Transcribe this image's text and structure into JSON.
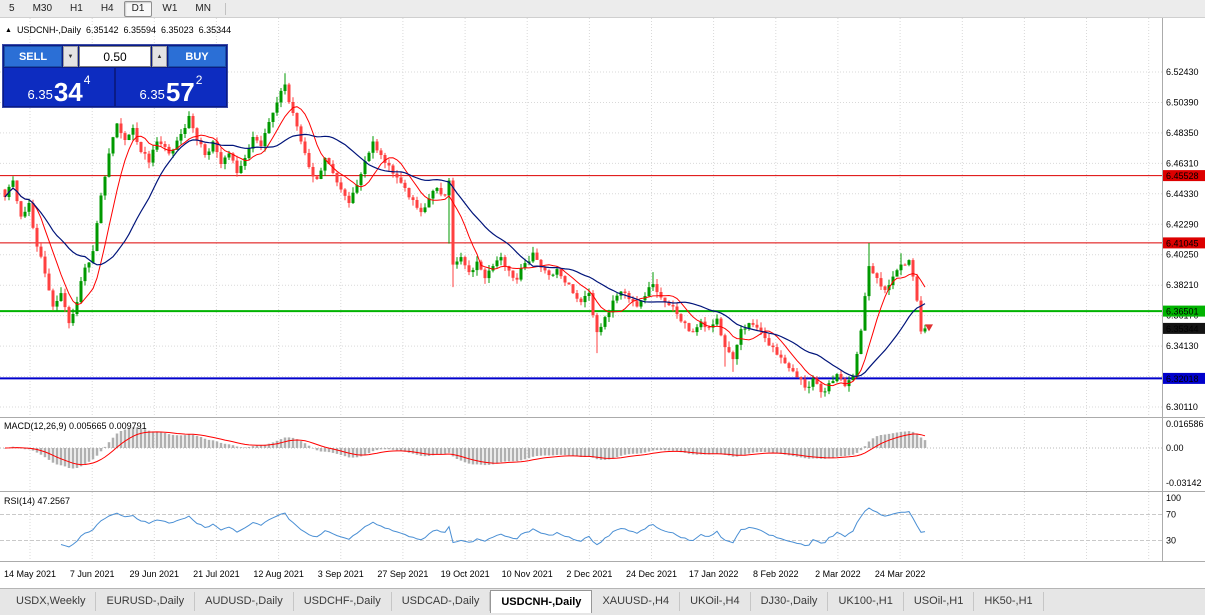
{
  "toolbar": {
    "timeframes": [
      {
        "label": "5",
        "active": false
      },
      {
        "label": "M30",
        "active": false
      },
      {
        "label": "H1",
        "active": false
      },
      {
        "label": "H4",
        "active": false
      },
      {
        "label": "D1",
        "active": true
      },
      {
        "label": "W1",
        "active": false
      },
      {
        "label": "MN",
        "active": false
      }
    ]
  },
  "chart_header": {
    "marker": "▲",
    "symbol": "USDCNH-,Daily",
    "open": "6.35142",
    "high": "6.35594",
    "low": "6.35023",
    "close": "6.35344"
  },
  "trade_panel": {
    "sell_label": "SELL",
    "buy_label": "BUY",
    "lot_value": "0.50",
    "lot_decrease_icon": "▼",
    "lot_increase_icon": "▲",
    "sell_price": {
      "prefix": "6.35",
      "big": "34",
      "sup": "4"
    },
    "buy_price": {
      "prefix": "6.35",
      "big": "57",
      "sup": "2"
    }
  },
  "tabs": [
    {
      "label": "USDX,Weekly",
      "active": false
    },
    {
      "label": "EURUSD-,Daily",
      "active": false
    },
    {
      "label": "AUDUSD-,Daily",
      "active": false
    },
    {
      "label": "USDCHF-,Daily",
      "active": false
    },
    {
      "label": "USDCAD-,Daily",
      "active": false
    },
    {
      "label": "USDCNH-,Daily",
      "active": true
    },
    {
      "label": "XAUUSD-,H4",
      "active": false
    },
    {
      "label": "UKOil-,H4",
      "active": false
    },
    {
      "label": "DJ30-,Daily",
      "active": false
    },
    {
      "label": "UK100-,H1",
      "active": false
    },
    {
      "label": "USOil-,H1",
      "active": false
    },
    {
      "label": "HK50-,H1",
      "active": false
    }
  ],
  "chart_data": {
    "type": "candlestick",
    "symbol": "USDCNH-",
    "timeframe": "Daily",
    "title": "USDCNH-,Daily",
    "last_ohlc": {
      "open": 6.35142,
      "high": 6.35594,
      "low": 6.35023,
      "close": 6.35344
    },
    "up_color": "#009900",
    "down_color": "#ff4040",
    "grid_color": "#d9d9d9",
    "candle_count": 231,
    "close_path": [
      [
        0,
        6.441
      ],
      [
        2,
        6.452
      ],
      [
        4,
        6.428
      ],
      [
        6,
        6.437
      ],
      [
        8,
        6.408
      ],
      [
        10,
        6.39
      ],
      [
        12,
        6.368
      ],
      [
        14,
        6.377
      ],
      [
        16,
        6.357
      ],
      [
        18,
        6.371
      ],
      [
        20,
        6.394
      ],
      [
        22,
        6.405
      ],
      [
        24,
        6.442
      ],
      [
        26,
        6.47
      ],
      [
        28,
        6.49
      ],
      [
        30,
        6.479
      ],
      [
        32,
        6.487
      ],
      [
        34,
        6.471
      ],
      [
        36,
        6.464
      ],
      [
        38,
        6.478
      ],
      [
        41,
        6.47
      ],
      [
        44,
        6.483
      ],
      [
        46,
        6.495
      ],
      [
        48,
        6.479
      ],
      [
        50,
        6.469
      ],
      [
        52,
        6.478
      ],
      [
        54,
        6.463
      ],
      [
        56,
        6.47
      ],
      [
        58,
        6.457
      ],
      [
        60,
        6.467
      ],
      [
        62,
        6.481
      ],
      [
        64,
        6.475
      ],
      [
        66,
        6.491
      ],
      [
        68,
        6.504
      ],
      [
        70,
        6.516
      ],
      [
        72,
        6.497
      ],
      [
        74,
        6.478
      ],
      [
        76,
        6.461
      ],
      [
        78,
        6.453
      ],
      [
        80,
        6.467
      ],
      [
        82,
        6.457
      ],
      [
        84,
        6.446
      ],
      [
        86,
        6.437
      ],
      [
        88,
        6.449
      ],
      [
        90,
        6.465
      ],
      [
        92,
        6.478
      ],
      [
        94,
        6.469
      ],
      [
        96,
        6.462
      ],
      [
        98,
        6.454
      ],
      [
        100,
        6.447
      ],
      [
        102,
        6.439
      ],
      [
        104,
        6.431
      ],
      [
        106,
        6.44
      ],
      [
        108,
        6.447
      ],
      [
        110,
        6.442
      ],
      [
        111,
        6.452
      ],
      [
        112,
        6.396
      ],
      [
        114,
        6.401
      ],
      [
        116,
        6.391
      ],
      [
        118,
        6.398
      ],
      [
        120,
        6.387
      ],
      [
        122,
        6.395
      ],
      [
        124,
        6.401
      ],
      [
        126,
        6.392
      ],
      [
        128,
        6.386
      ],
      [
        130,
        6.397
      ],
      [
        132,
        6.404
      ],
      [
        134,
        6.394
      ],
      [
        136,
        6.389
      ],
      [
        138,
        6.393
      ],
      [
        140,
        6.384
      ],
      [
        142,
        6.377
      ],
      [
        144,
        6.371
      ],
      [
        146,
        6.377
      ],
      [
        148,
        6.351
      ],
      [
        150,
        6.361
      ],
      [
        152,
        6.372
      ],
      [
        154,
        6.378
      ],
      [
        156,
        6.373
      ],
      [
        158,
        6.368
      ],
      [
        160,
        6.375
      ],
      [
        162,
        6.383
      ],
      [
        164,
        6.374
      ],
      [
        166,
        6.369
      ],
      [
        168,
        6.363
      ],
      [
        170,
        6.357
      ],
      [
        172,
        6.351
      ],
      [
        174,
        6.358
      ],
      [
        176,
        6.354
      ],
      [
        178,
        6.36
      ],
      [
        180,
        6.341
      ],
      [
        182,
        6.333
      ],
      [
        184,
        6.353
      ],
      [
        186,
        6.357
      ],
      [
        188,
        6.354
      ],
      [
        190,
        6.347
      ],
      [
        192,
        6.341
      ],
      [
        194,
        6.334
      ],
      [
        196,
        6.327
      ],
      [
        198,
        6.321
      ],
      [
        200,
        6.314
      ],
      [
        202,
        6.32
      ],
      [
        204,
        6.311
      ],
      [
        206,
        6.317
      ],
      [
        208,
        6.323
      ],
      [
        210,
        6.315
      ],
      [
        212,
        6.322
      ],
      [
        214,
        6.352
      ],
      [
        215,
        6.375
      ],
      [
        216,
        6.395
      ],
      [
        218,
        6.387
      ],
      [
        220,
        6.379
      ],
      [
        222,
        6.388
      ],
      [
        224,
        6.396
      ],
      [
        226,
        6.399
      ],
      [
        227,
        6.388
      ],
      [
        228,
        6.372
      ],
      [
        229,
        6.3514
      ],
      [
        230,
        6.35344
      ]
    ],
    "spikes": [
      [
        16,
        "low",
        6.3535
      ],
      [
        70,
        "high",
        6.5235
      ],
      [
        111,
        "low",
        6.41
      ],
      [
        112,
        "low",
        6.381
      ],
      [
        148,
        "low",
        6.337
      ],
      [
        162,
        "high",
        6.391
      ],
      [
        180,
        "low",
        6.328
      ],
      [
        182,
        "low",
        6.3245
      ],
      [
        216,
        "high",
        6.4104
      ],
      [
        224,
        "high",
        6.4035
      ],
      [
        230,
        "high",
        6.35594
      ],
      [
        230,
        "low",
        6.35023
      ]
    ],
    "categories": [
      "14 May 2021",
      "7 Jun 2021",
      "29 Jun 2021",
      "21 Jul 2021",
      "12 Aug 2021",
      "3 Sep 2021",
      "27 Sep 2021",
      "19 Oct 2021",
      "10 Nov 2021",
      "2 Dec 2021",
      "24 Dec 2021",
      "17 Jan 2022",
      "8 Feb 2022",
      "2 Mar 2022",
      "24 Mar 2022"
    ],
    "price_axis_labels": [
      "6.52430",
      "6.50390",
      "6.48350",
      "6.46310",
      "6.44330",
      "6.42290",
      "6.40250",
      "6.38210",
      "6.36170",
      "6.34130",
      "6.32090",
      "6.30110"
    ],
    "hlines": [
      {
        "value": 6.45528,
        "label": "6.45528",
        "color": "#dd0000",
        "width": 1
      },
      {
        "value": 6.41045,
        "label": "6.41045",
        "color": "#dd0000",
        "width": 1
      },
      {
        "value": 6.36501,
        "label": "6.36501",
        "color": "#00b300",
        "width": 2
      },
      {
        "value": 6.32018,
        "label": "6.32018",
        "color": "#0000cc",
        "width": 2
      }
    ],
    "current_price": {
      "value": 6.35344,
      "label": "6.35344",
      "badge_color": "#141414",
      "arrow_color": "#e03030"
    },
    "moving_averages": [
      {
        "name": "ma-fast",
        "period": 8,
        "color": "#ff0000",
        "width": 1
      },
      {
        "name": "ma-slow",
        "period": 21,
        "color": "#00147a",
        "width": 1.2
      }
    ],
    "macd": {
      "title": "MACD(12,26,9) 0.005665 0.009791",
      "fast": 12,
      "slow": 26,
      "signal": 9,
      "value": 0.005665,
      "signal_value": 0.009791,
      "axis_labels": [
        "0.016586",
        "0.00",
        "-0.03142"
      ],
      "histogram_color": "#b0b0b0",
      "signal_color": "#ff0000"
    },
    "rsi": {
      "title": "RSI(14) 47.2567",
      "period": 14,
      "value": 47.2567,
      "axis_labels": [
        "100",
        "70",
        "30"
      ],
      "levels": [
        70,
        30
      ],
      "line_color": "#4a8fd4"
    }
  }
}
